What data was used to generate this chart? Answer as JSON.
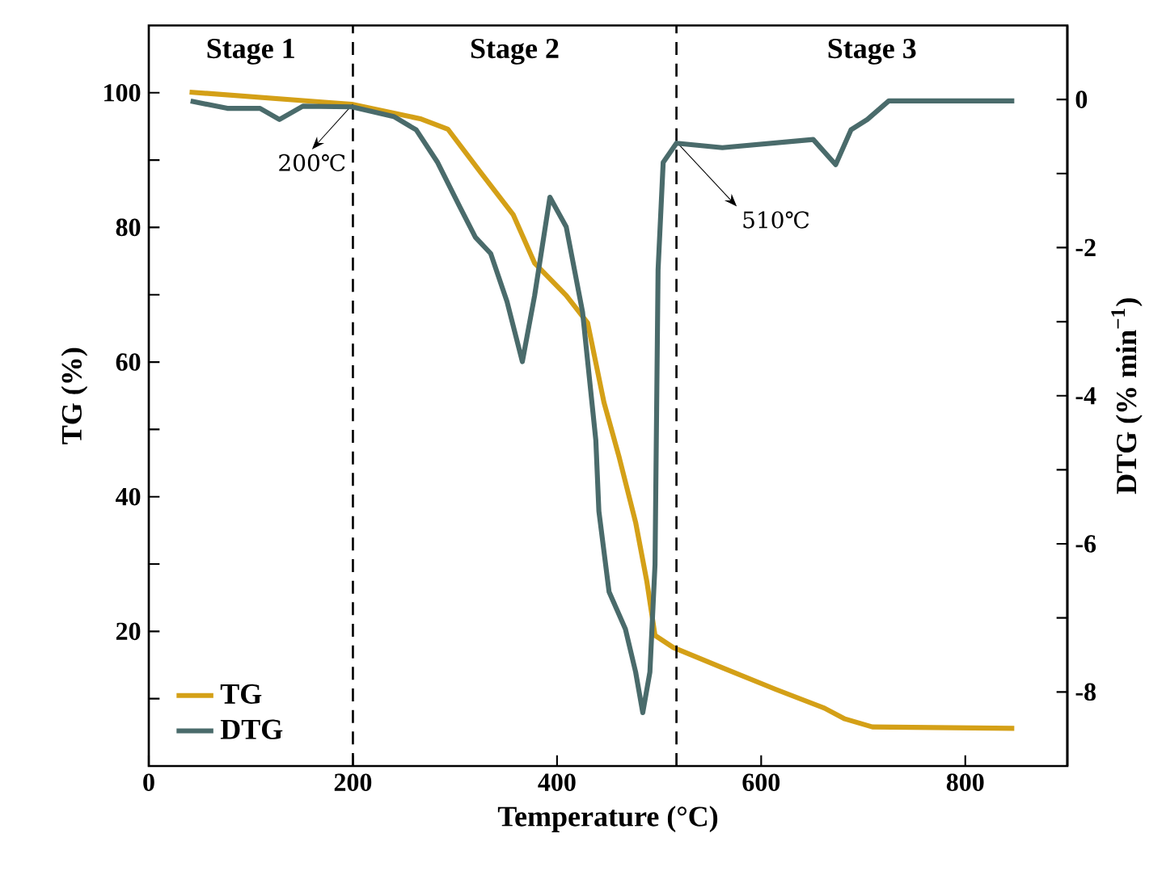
{
  "chart_data": {
    "type": "line",
    "xlabel": "Temperature (°C)",
    "ylabel": "TG (%)",
    "y2label": "DTG (% min$^{−1}$)",
    "xlim": [
      0,
      900
    ],
    "xticks": [
      0,
      200,
      400,
      600,
      800
    ],
    "ylim": [
      0,
      110
    ],
    "yticks": [
      {
        "value": 10,
        "label": null
      },
      20,
      {
        "value": 30,
        "label": null
      },
      40,
      {
        "value": 50,
        "label": null
      },
      60,
      {
        "value": 70,
        "label": null
      },
      80,
      {
        "value": 90,
        "label": null
      },
      100
    ],
    "y2lim": [
      -9,
      1
    ],
    "y2ticks": [
      -8,
      {
        "value": -7,
        "label": null
      },
      -6,
      {
        "value": -5,
        "label": null
      },
      -4,
      {
        "value": -3,
        "label": null
      },
      -2,
      {
        "value": -1,
        "label": null
      },
      0
    ],
    "legend": "bottom left",
    "series": [
      {
        "name": "TG",
        "color": "#d4a017",
        "line_style": "solid",
        "x": [
          40,
          172,
          199,
          267,
          293,
          325,
          357,
          378,
          409,
          430,
          446,
          461,
          477,
          488,
          496,
          514,
          562,
          614,
          662,
          682,
          709,
          848
        ],
        "values": [
          100.1,
          98.6,
          98.3,
          96.1,
          94.6,
          88.2,
          81.9,
          74.7,
          69.9,
          65.8,
          54,
          45.8,
          36.2,
          27.4,
          19.4,
          17.6,
          14.6,
          11.4,
          8.6,
          7.0,
          5.8,
          5.6
        ]
      },
      {
        "name": "DTG",
        "color": "#4a6b6b",
        "line_style": "solid",
        "axis": "y2",
        "x": [
          41,
          77,
          109,
          128,
          151,
          199,
          240,
          262,
          283,
          304,
          320,
          335,
          351,
          366,
          378,
          393,
          409,
          425,
          438,
          441,
          451,
          467,
          477,
          484,
          491,
          496,
          499,
          504,
          517,
          562,
          651,
          673,
          688,
          704,
          725,
          848
        ],
        "values": [
          -0.02,
          -0.12,
          -0.12,
          -0.27,
          -0.09,
          -0.1,
          -0.23,
          -0.41,
          -0.85,
          -1.43,
          -1.86,
          -2.08,
          -2.73,
          -3.54,
          -2.65,
          -1.32,
          -1.72,
          -2.87,
          -4.6,
          -5.56,
          -6.65,
          -7.15,
          -7.73,
          -8.28,
          -7.73,
          -6.28,
          -2.3,
          -0.85,
          -0.59,
          -0.65,
          -0.54,
          -0.88,
          -0.41,
          -0.27,
          -0.02,
          -0.02
        ]
      }
    ],
    "ref_lines": [
      {
        "axis": "x",
        "value": 200,
        "line_style": "dashed",
        "color": "#000000"
      },
      {
        "axis": "x",
        "value": 517,
        "line_style": "dashed",
        "color": "#000000"
      }
    ],
    "annotations": [
      "Stage 1",
      "Stage 2",
      "Stage 3",
      {
        "text": "200℃",
        "x": 200,
        "y": 98.3
      },
      {
        "text": "510℃",
        "x": 517,
        "y": 92.7
      }
    ]
  }
}
